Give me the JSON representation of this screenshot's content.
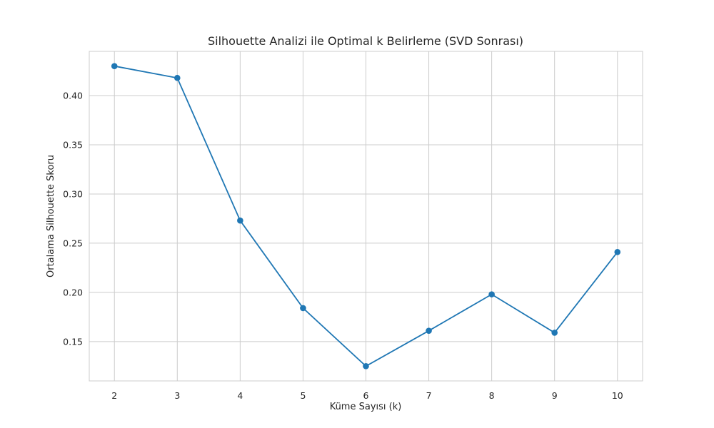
{
  "chart_data": {
    "type": "line",
    "title": "Silhouette Analizi ile Optimal k Belirleme (SVD Sonrası)",
    "xlabel": "Küme Sayısı (k)",
    "ylabel": "Ortalama Silhouette Skoru",
    "x": [
      2,
      3,
      4,
      5,
      6,
      7,
      8,
      9,
      10
    ],
    "series": [
      {
        "values": [
          0.43,
          0.418,
          0.273,
          0.184,
          0.125,
          0.161,
          0.198,
          0.159,
          0.241
        ],
        "color": "#1f77b4",
        "marker": "circle"
      }
    ],
    "xticks": [
      "2",
      "3",
      "4",
      "5",
      "6",
      "7",
      "8",
      "9",
      "10"
    ],
    "yticks": [
      "0.15",
      "0.20",
      "0.25",
      "0.30",
      "0.35",
      "0.40"
    ],
    "xlim": [
      1.6,
      10.4
    ],
    "ylim": [
      0.11,
      0.445
    ],
    "grid": true,
    "style": "whitegrid"
  }
}
